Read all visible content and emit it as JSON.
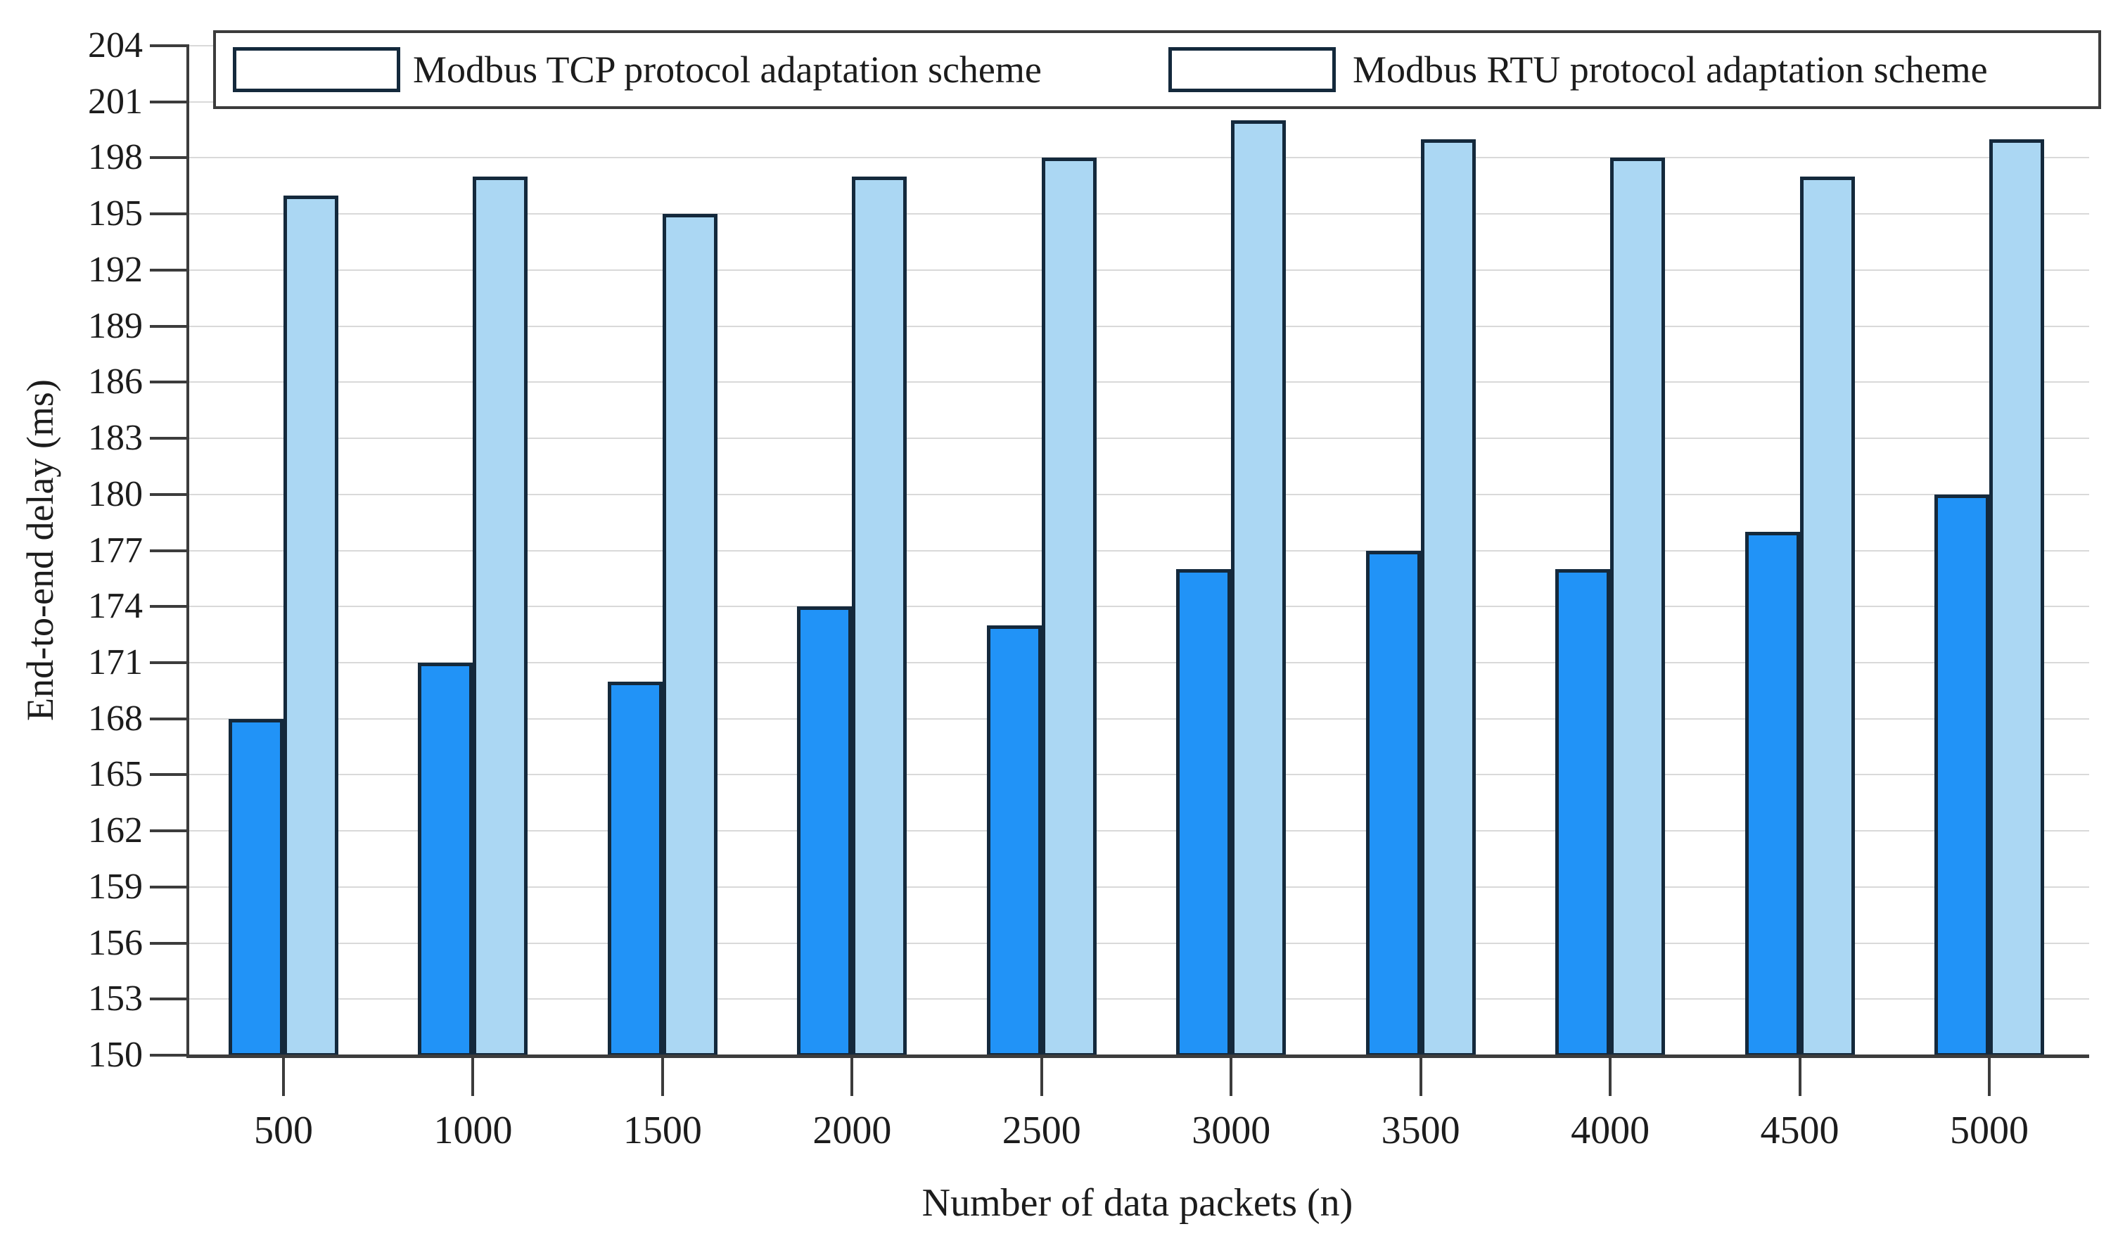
{
  "chart_data": {
    "type": "bar",
    "title": "",
    "xlabel": "Number of data packets (n)",
    "ylabel": "End-to-end delay (ms)",
    "categories": [
      "500",
      "1000",
      "1500",
      "2000",
      "2500",
      "3000",
      "3500",
      "4000",
      "4500",
      "5000"
    ],
    "series": [
      {
        "name": "Modbus TCP protocol adaptation scheme",
        "color": "#2193F7",
        "values": [
          168,
          171,
          170,
          174,
          173,
          176,
          177,
          176,
          178,
          180
        ]
      },
      {
        "name": "Modbus RTU protocol adaptation scheme",
        "color": "#ABD7F3",
        "values": [
          196,
          197,
          195,
          197,
          198,
          200,
          199,
          198,
          197,
          199
        ]
      }
    ],
    "ylim": [
      150,
      204
    ],
    "ytick_step": 3,
    "yticks": [
      150,
      153,
      156,
      159,
      162,
      165,
      168,
      171,
      174,
      177,
      180,
      183,
      186,
      189,
      192,
      195,
      198,
      201,
      204
    ],
    "grid": "horizontal",
    "legend_position": "top"
  },
  "colors": {
    "background": "#ffffff",
    "axis": "#3c3c3c",
    "grid": "#d9d9d9",
    "bar_border": "#14293c",
    "text": "#1c1c1c",
    "tcp_fill": "#2193F7",
    "rtu_fill": "#ABD7F3"
  }
}
